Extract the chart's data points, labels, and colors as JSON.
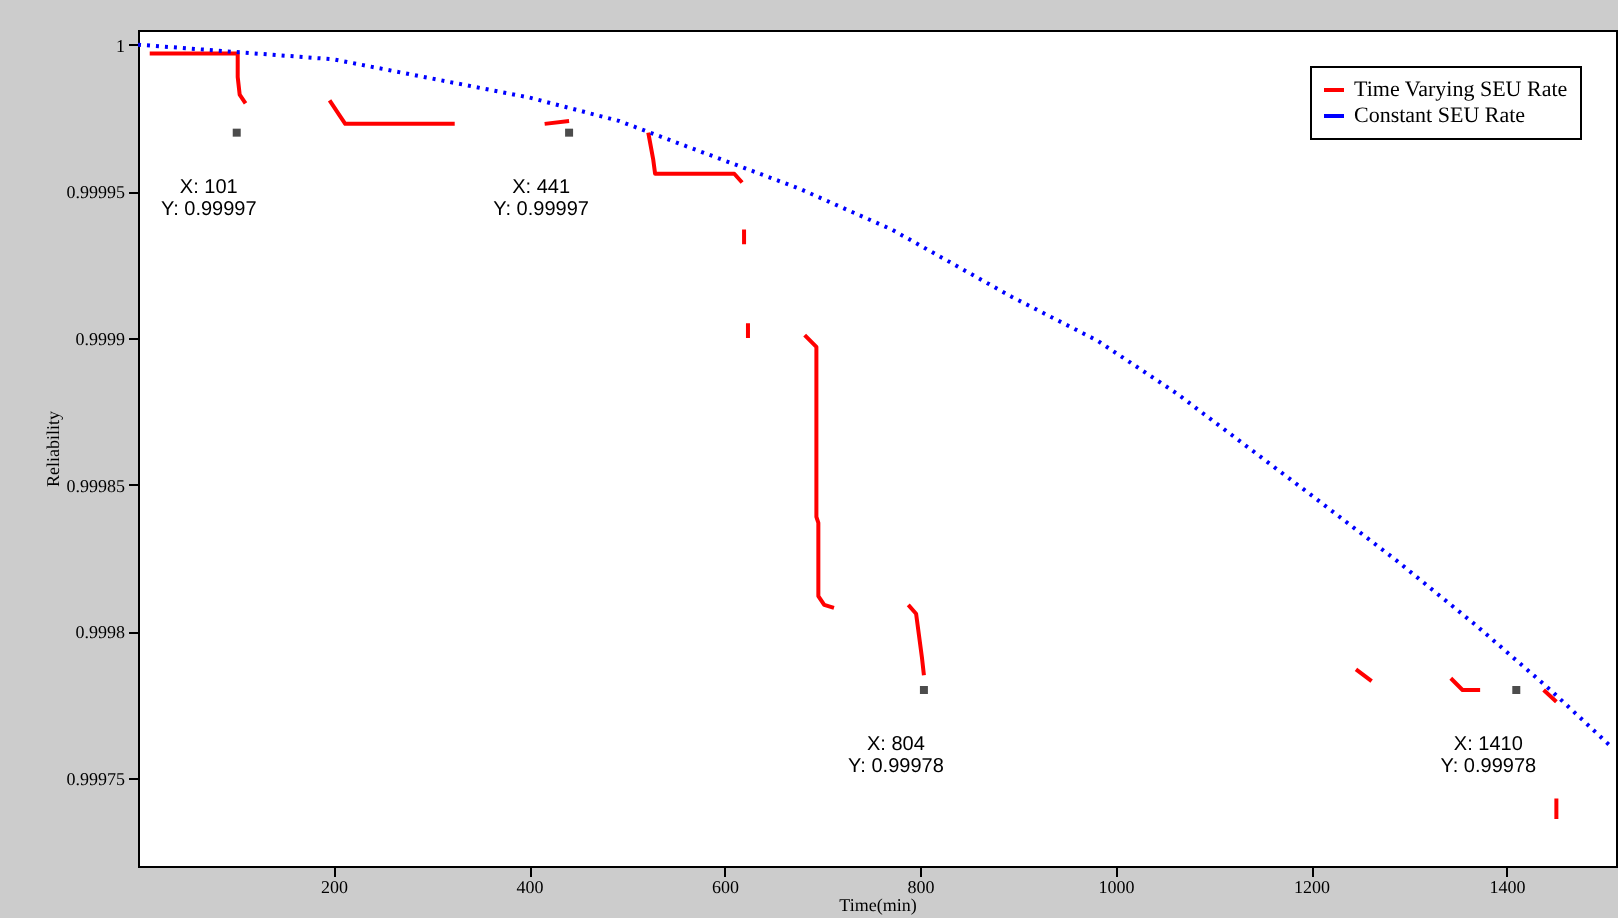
{
  "chart_data": {
    "type": "line",
    "xlabel": "Time(min)",
    "ylabel": "Reliability",
    "legend": "top right",
    "grid": false,
    "xlim": [
      0,
      1512
    ],
    "xticks": [
      200,
      400,
      600,
      800,
      1000,
      1200,
      1400
    ],
    "ylim": [
      0.99972,
      1.000005
    ],
    "yticks": [
      0.99975,
      0.9998,
      0.99985,
      0.9999,
      0.99995,
      1
    ],
    "series": [
      {
        "name": "Time Varying SEU Rate",
        "color": "#ff0000",
        "line_style": "solid",
        "x": [
          12,
          102,
          102,
          104,
          110,
          null,
          196,
          206,
          212,
          324,
          null,
          416,
          441,
          null,
          522,
          527,
          529,
          610,
          618,
          null,
          620,
          620,
          null,
          624,
          624,
          null,
          682,
          694,
          694,
          696,
          696,
          702,
          712,
          null,
          788,
          796,
          802,
          804,
          null,
          1246,
          1262,
          null,
          1343,
          1355,
          1373,
          null,
          1438,
          1451,
          null,
          1451,
          1451
        ],
        "values": [
          0.999997,
          0.999997,
          0.999989,
          0.999983,
          0.99998,
          null,
          0.999981,
          0.999976,
          0.999973,
          0.999973,
          null,
          0.999973,
          0.999974,
          null,
          0.99997,
          0.999961,
          0.999956,
          0.999956,
          0.999953,
          null,
          0.999937,
          0.999932,
          null,
          0.999905,
          0.9999,
          null,
          0.999901,
          0.999897,
          0.999839,
          0.999837,
          0.999812,
          0.999809,
          0.999808,
          null,
          0.999809,
          0.999806,
          0.999791,
          0.999785,
          null,
          0.999787,
          0.999783,
          null,
          0.999784,
          0.99978,
          0.99978,
          null,
          0.99978,
          0.999776,
          null,
          0.999743,
          0.999736
        ]
      },
      {
        "name": "Constant SEU Rate",
        "color": "#0000ff",
        "line_style": "dotted",
        "x": [
          0,
          200,
          400,
          492,
          676,
          771,
          894,
          982,
          1063,
          1202,
          1288,
          1369,
          1445,
          1506
        ],
        "values": [
          1,
          0.999995,
          0.999982,
          0.999974,
          0.999951,
          0.999937,
          0.999914,
          0.999899,
          0.999881,
          0.999846,
          0.999824,
          0.999802,
          0.99978,
          0.999761
        ]
      }
    ],
    "annotations": [
      {
        "text": "X: 101\nY: 0.99997",
        "x": 101,
        "y": 0.99997
      },
      {
        "text": "X: 441\nY: 0.99997",
        "x": 441,
        "y": 0.99997
      },
      {
        "text": "X: 804\nY: 0.99978",
        "x": 804,
        "y": 0.99978
      },
      {
        "text": "X: 1410\nY: 0.99978",
        "x": 1410,
        "y": 0.99978
      }
    ]
  }
}
